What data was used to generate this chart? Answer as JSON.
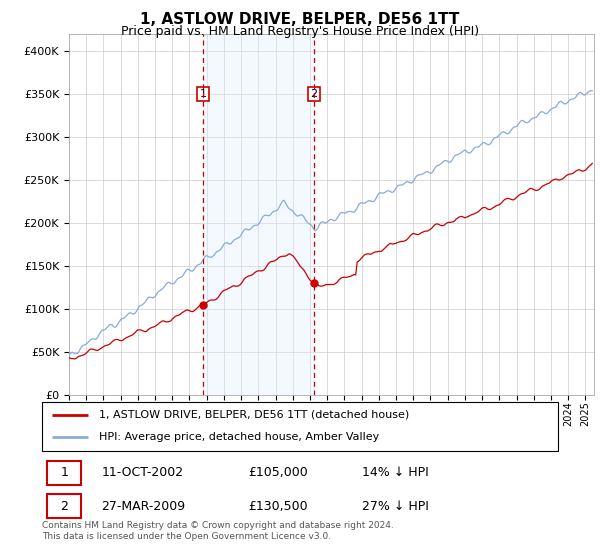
{
  "title": "1, ASTLOW DRIVE, BELPER, DE56 1TT",
  "subtitle": "Price paid vs. HM Land Registry's House Price Index (HPI)",
  "title_fontsize": 11,
  "subtitle_fontsize": 9,
  "ylabel_ticks": [
    "£0",
    "£50K",
    "£100K",
    "£150K",
    "£200K",
    "£250K",
    "£300K",
    "£350K",
    "£400K"
  ],
  "ylabel_values": [
    0,
    50000,
    100000,
    150000,
    200000,
    250000,
    300000,
    350000,
    400000
  ],
  "ylim": [
    0,
    420000
  ],
  "xlim_start": 1995.0,
  "xlim_end": 2025.5,
  "sale1_year": 2002.78,
  "sale1_price": 105000,
  "sale1_label": "1",
  "sale1_date": "11-OCT-2002",
  "sale1_hpi_diff": "14% ↓ HPI",
  "sale2_year": 2009.23,
  "sale2_price": 130500,
  "sale2_label": "2",
  "sale2_date": "27-MAR-2009",
  "sale2_hpi_diff": "27% ↓ HPI",
  "line1_color": "#cc0000",
  "line2_color": "#88aadd",
  "shade_color": "#ddeeff",
  "marker_color": "#cc0000",
  "grid_color": "#cccccc",
  "bg_color": "#ffffff",
  "legend_line1": "1, ASTLOW DRIVE, BELPER, DE56 1TT (detached house)",
  "legend_line2": "HPI: Average price, detached house, Amber Valley",
  "footnote1": "Contains HM Land Registry data © Crown copyright and database right 2024.",
  "footnote2": "This data is licensed under the Open Government Licence v3.0."
}
